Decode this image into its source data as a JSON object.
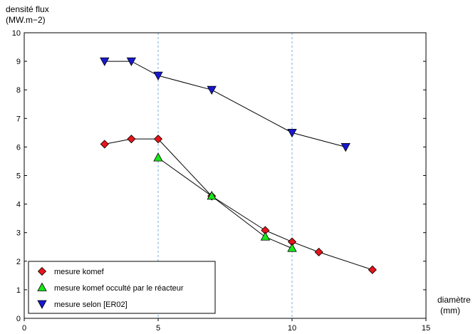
{
  "chart_data": {
    "type": "scatter",
    "ylabel_line1": "densité flux",
    "ylabel_line2": "(MW.m−2)",
    "xlabel_line1": "diamètre",
    "xlabel_line2": "(mm)",
    "xlim": [
      0,
      15
    ],
    "ylim": [
      0,
      10
    ],
    "x_ticks": [
      0,
      5,
      10,
      15
    ],
    "y_ticks": [
      0,
      1,
      2,
      3,
      4,
      5,
      6,
      7,
      8,
      9,
      10
    ],
    "grid": "dashed vertical lines at x = 5 and x = 10",
    "legend_position": "bottom-left",
    "series": [
      {
        "name": "mesure komef",
        "marker": "diamond",
        "color": "#e8141b",
        "x": [
          3,
          4,
          5,
          7,
          9,
          10,
          11,
          13
        ],
        "y": [
          6.1,
          6.28,
          6.28,
          4.28,
          3.08,
          2.68,
          2.32,
          1.7
        ]
      },
      {
        "name": "mesure komef occulté par le réacteur",
        "marker": "triangle-up",
        "color": "#18e818",
        "x": [
          5,
          7,
          9,
          10
        ],
        "y": [
          5.62,
          4.28,
          2.85,
          2.45
        ]
      },
      {
        "name": "mesure selon [ER02]",
        "marker": "triangle-down",
        "color": "#1818d0",
        "x": [
          3,
          4,
          5,
          7,
          10,
          12
        ],
        "y": [
          9.0,
          9.0,
          8.5,
          8.0,
          6.5,
          6.0
        ]
      }
    ]
  }
}
